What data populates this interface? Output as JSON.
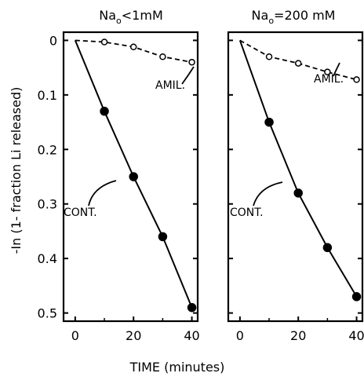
{
  "chart_data": [
    {
      "type": "line",
      "title": {
        "base": "Na",
        "sub": "o",
        "rest": "<1mM"
      },
      "xlabel": "",
      "ylabel": "-In (1- fraction Li released)",
      "xlim": [
        -4,
        42
      ],
      "ylim": [
        -0.015,
        0.515
      ],
      "y_inverted": true,
      "xticks": [
        "0",
        "20",
        "40"
      ],
      "yticks": [
        "0",
        "0.1",
        "0.2",
        "0.3",
        "0.4",
        "0.5"
      ],
      "series": [
        {
          "x": [
            0,
            10,
            20,
            30,
            40
          ],
          "y": [
            0,
            0.003,
            0.012,
            0.03,
            0.04
          ],
          "style": "dashed-open",
          "label": "AMIL."
        },
        {
          "x": [
            0,
            10,
            20,
            30,
            40
          ],
          "y": [
            0,
            0.13,
            0.25,
            0.36,
            0.49
          ],
          "style": "solid-filled",
          "label": "CONT."
        }
      ]
    },
    {
      "type": "line",
      "title": {
        "base": "Na",
        "sub": "o",
        "rest": "=200 mM"
      },
      "xlabel": "",
      "ylabel": "",
      "xlim": [
        -4,
        42
      ],
      "ylim": [
        -0.015,
        0.515
      ],
      "y_inverted": true,
      "xticks": [
        "0",
        "20",
        "40"
      ],
      "yticks": [],
      "series": [
        {
          "x": [
            0,
            10,
            20,
            30,
            40
          ],
          "y": [
            0,
            0.03,
            0.042,
            0.058,
            0.072
          ],
          "style": "dashed-open",
          "label": "AMIL."
        },
        {
          "x": [
            0,
            10,
            20,
            30,
            40
          ],
          "y": [
            0,
            0.15,
            0.28,
            0.38,
            0.47
          ],
          "style": "solid-filled",
          "label": "CONT."
        }
      ]
    }
  ],
  "xaxis_label": "TIME (minutes)"
}
